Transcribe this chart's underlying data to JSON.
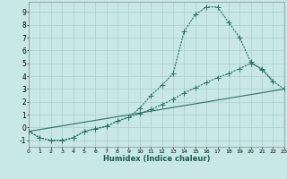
{
  "xlabel": "Humidex (Indice chaleur)",
  "bg_color": "#c8e8e8",
  "grid_color": "#b0cccc",
  "line_color": "#2a7060",
  "xlim": [
    0,
    23
  ],
  "ylim": [
    -1.5,
    9.8
  ],
  "xticks": [
    0,
    1,
    2,
    3,
    4,
    5,
    6,
    7,
    8,
    9,
    10,
    11,
    12,
    13,
    14,
    15,
    16,
    17,
    18,
    19,
    20,
    21,
    22,
    23
  ],
  "yticks": [
    -1,
    0,
    1,
    2,
    3,
    4,
    5,
    6,
    7,
    8,
    9
  ],
  "line1_x": [
    0,
    1,
    2,
    3,
    4,
    5,
    6,
    7,
    8,
    9,
    10,
    11,
    12,
    13,
    14,
    15,
    16,
    17,
    18,
    19,
    20,
    21,
    22
  ],
  "line1_y": [
    -0.3,
    -0.8,
    -1.0,
    -1.0,
    -0.8,
    -0.3,
    -0.1,
    0.1,
    0.5,
    0.8,
    1.5,
    2.5,
    3.3,
    4.2,
    7.5,
    8.8,
    9.4,
    9.4,
    8.2,
    7.0,
    5.1,
    4.5,
    3.6
  ],
  "line2_x": [
    0,
    1,
    2,
    3,
    4,
    5,
    6,
    7,
    8,
    9,
    10,
    11,
    12,
    13,
    14,
    15,
    16,
    17,
    18,
    19,
    20,
    21,
    22,
    23
  ],
  "line2_y": [
    -0.3,
    -0.8,
    -1.0,
    -1.0,
    -0.8,
    -0.3,
    -0.1,
    0.1,
    0.5,
    0.8,
    1.1,
    1.4,
    1.8,
    2.2,
    2.7,
    3.1,
    3.5,
    3.9,
    4.2,
    4.6,
    5.0,
    4.6,
    3.6,
    3.0
  ],
  "line3_x": [
    0,
    23
  ],
  "line3_y": [
    -0.3,
    3.0
  ],
  "marker_size": 2.5,
  "lw": 0.8
}
